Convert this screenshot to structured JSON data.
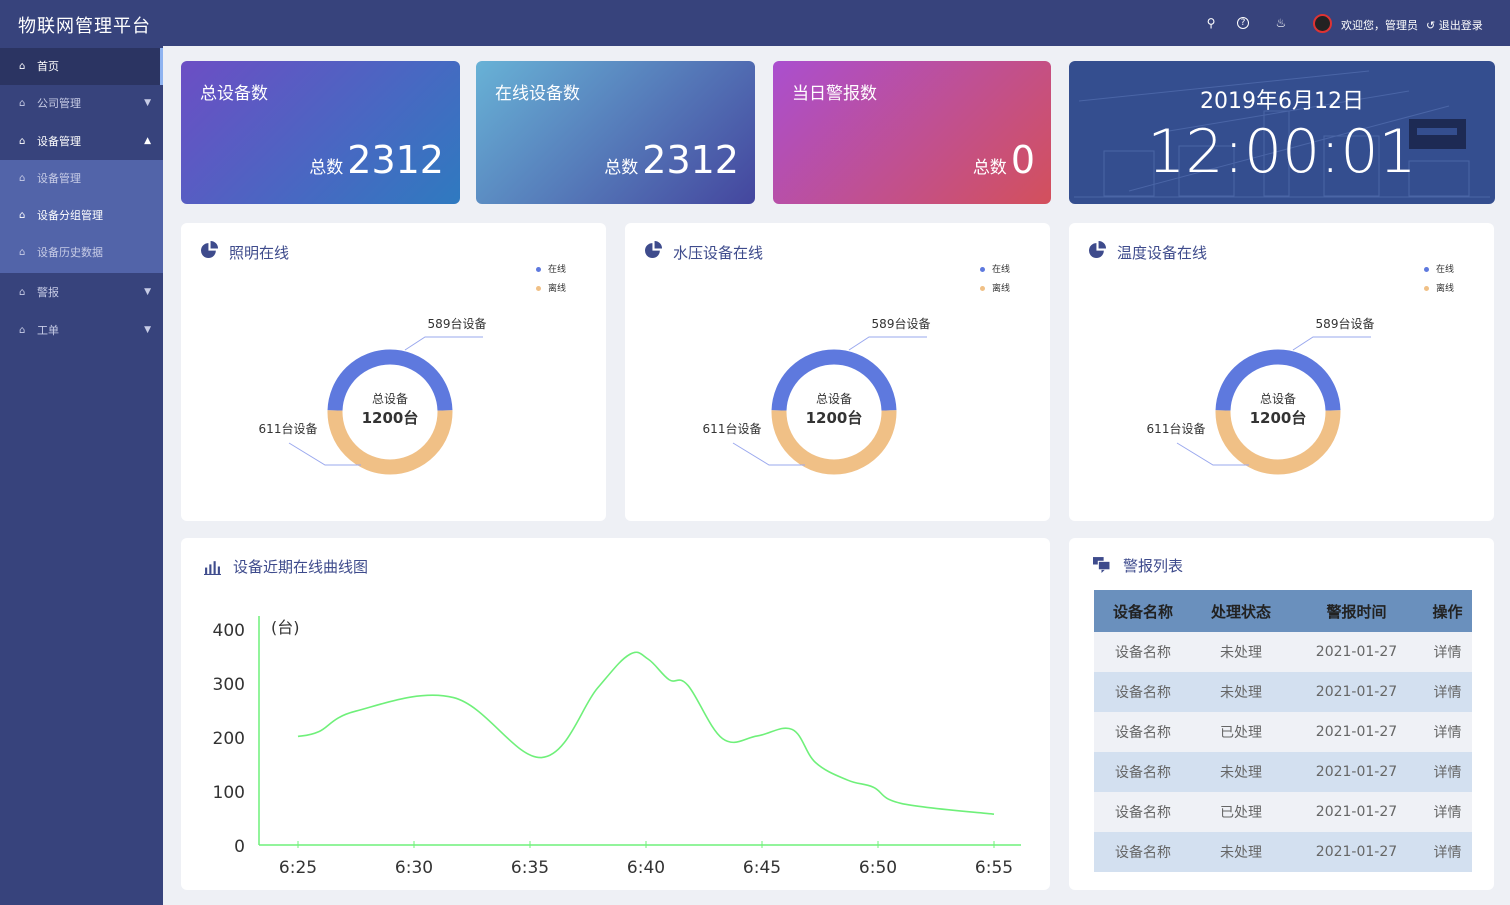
{
  "header": {
    "title": "物联网管理平台",
    "welcome": "欢迎您，管理员",
    "logout": "退出登录",
    "icons": [
      "search-icon",
      "help-icon",
      "bell-icon"
    ]
  },
  "sidebar": {
    "items": [
      {
        "label": "首页",
        "state": "active"
      },
      {
        "label": "公司管理",
        "arrow": "▼"
      },
      {
        "label": "设备管理",
        "arrow": "▲"
      },
      {
        "label": "设备管理",
        "sub": true
      },
      {
        "label": "设备分组管理",
        "sub": true
      },
      {
        "label": "设备历史数据",
        "sub": true
      },
      {
        "label": "警报",
        "arrow": "▼"
      },
      {
        "label": "工单",
        "arrow": "▼"
      }
    ]
  },
  "stats": [
    {
      "title": "总设备数",
      "label": "总数",
      "value": "2312",
      "colors": [
        "#6c4ec4",
        "#2f7ac0"
      ]
    },
    {
      "title": "在线设备数",
      "label": "总数",
      "value": "2312",
      "colors": [
        "#68b2d6",
        "#44469e"
      ]
    },
    {
      "title": "当日警报数",
      "label": "总数",
      "value": "0",
      "colors": [
        "#aa4fcf",
        "#d3505c"
      ]
    }
  ],
  "clock": {
    "date": "2019年6月12日",
    "time": "12:00:01"
  },
  "donuts": [
    {
      "title": "照明在线",
      "center_label": "总设备",
      "center_value": "1200台",
      "online": 589,
      "offline": 611,
      "online_label": "589台设备",
      "offline_label": "611台设备"
    },
    {
      "title": "水压设备在线",
      "center_label": "总设备",
      "center_value": "1200台",
      "online": 589,
      "offline": 611,
      "online_label": "589台设备",
      "offline_label": "611台设备"
    },
    {
      "title": "温度设备在线",
      "center_label": "总设备",
      "center_value": "1200台",
      "online": 589,
      "offline": 611,
      "online_label": "589台设备",
      "offline_label": "611台设备"
    }
  ],
  "donut_legend": {
    "online": "在线",
    "offline": "离线",
    "online_color": "#5e79de",
    "offline_color": "#f0c086"
  },
  "chart_data": {
    "type": "line",
    "title": "设备近期在线曲线图",
    "ylabel": "(台)",
    "ylim": [
      0,
      400
    ],
    "yticks": [
      "0",
      "100",
      "200",
      "300",
      "400"
    ],
    "xticks": [
      "6:25",
      "6:30",
      "6:35",
      "6:40",
      "6:45",
      "6:50",
      "6:55"
    ],
    "color": "#6ff07a",
    "grid": false,
    "x": [
      "6:25:00",
      "6:25:54",
      "6:27:30",
      "6:31:42",
      "6:35:30",
      "6:37:54",
      "6:39:18",
      "6:40:06",
      "6:41:00",
      "6:41:48",
      "6:43:18",
      "6:44:48",
      "6:46:18",
      "6:47:18",
      "6:48:42",
      "6:49:48",
      "6:51:00",
      "6:55:00"
    ],
    "y": [
      201,
      210,
      248,
      273,
      162,
      290,
      353,
      344,
      306,
      296,
      197,
      202,
      214,
      153,
      120,
      107,
      77,
      57
    ]
  },
  "alarms": {
    "title": "警报列表",
    "columns": [
      "设备名称",
      "处理状态",
      "警报时间",
      "操作"
    ],
    "rows": [
      [
        "设备名称",
        "未处理",
        "2021-01-27",
        "详情"
      ],
      [
        "设备名称",
        "未处理",
        "2021-01-27",
        "详情"
      ],
      [
        "设备名称",
        "已处理",
        "2021-01-27",
        "详情"
      ],
      [
        "设备名称",
        "未处理",
        "2021-01-27",
        "详情"
      ],
      [
        "设备名称",
        "已处理",
        "2021-01-27",
        "详情"
      ],
      [
        "设备名称",
        "未处理",
        "2021-01-27",
        "详情"
      ]
    ]
  }
}
